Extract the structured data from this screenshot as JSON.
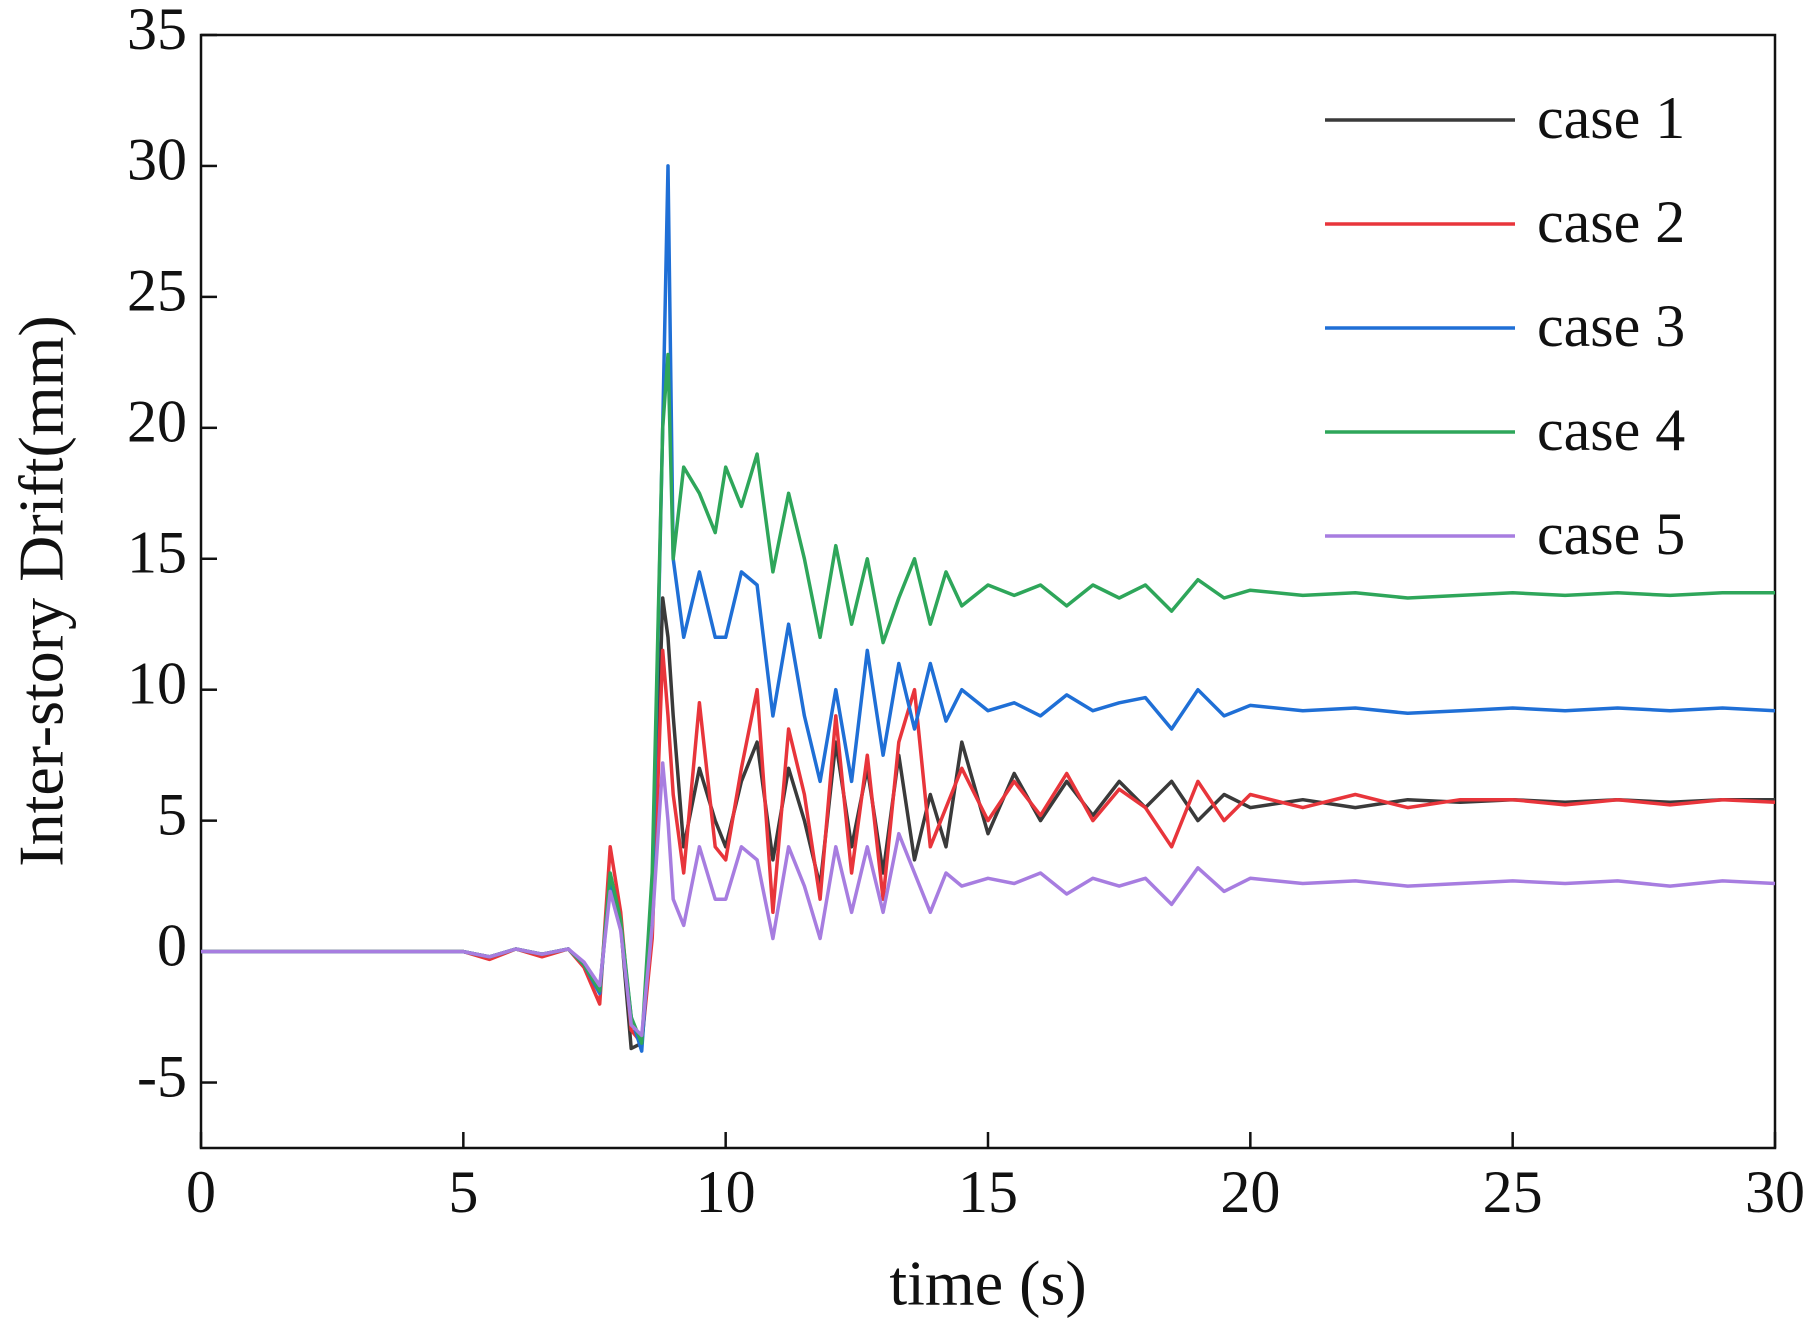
{
  "chart_data": {
    "type": "line",
    "xlabel": "time (s)",
    "ylabel": "Inter-story Drift(mm)",
    "x": [
      0,
      4.5,
      5,
      5.5,
      6,
      6.5,
      7,
      7.3,
      7.6,
      7.8,
      8.0,
      8.2,
      8.4,
      8.6,
      8.8,
      8.9,
      9.0,
      9.2,
      9.5,
      9.8,
      10.0,
      10.3,
      10.6,
      10.9,
      11.2,
      11.5,
      11.8,
      12.1,
      12.4,
      12.7,
      13.0,
      13.3,
      13.6,
      13.9,
      14.2,
      14.5,
      15,
      15.5,
      16,
      16.5,
      17,
      17.5,
      18,
      18.5,
      19,
      19.5,
      20,
      21,
      22,
      23,
      24,
      25,
      26,
      27,
      28,
      29,
      30
    ],
    "series": [
      {
        "name": "case 1",
        "color": "#3a3a3a",
        "values": [
          0,
          0,
          0,
          -0.2,
          0.1,
          -0.1,
          0.1,
          -0.5,
          -1.5,
          2.8,
          1,
          -3.7,
          -3.5,
          1,
          13.5,
          12,
          9,
          4,
          7,
          5,
          4,
          6.5,
          8,
          3.5,
          7,
          5,
          2.5,
          8,
          4,
          7,
          3,
          7.5,
          3.5,
          6,
          4,
          8,
          4.5,
          6.8,
          5,
          6.5,
          5.2,
          6.5,
          5.5,
          6.5,
          5,
          6,
          5.5,
          5.8,
          5.5,
          5.8,
          5.7,
          5.8,
          5.7,
          5.8,
          5.7,
          5.8,
          5.8
        ]
      },
      {
        "name": "case 2",
        "color": "#e8353b",
        "values": [
          0,
          0,
          0,
          -0.3,
          0.1,
          -0.2,
          0.1,
          -0.6,
          -2,
          4,
          1.5,
          -3,
          -3.5,
          0.5,
          11.5,
          9,
          6,
          3,
          9.5,
          4,
          3.5,
          7,
          10,
          1.5,
          8.5,
          6,
          2,
          9,
          3,
          7.5,
          2,
          8,
          10,
          4,
          5.5,
          7,
          5,
          6.5,
          5.2,
          6.8,
          5,
          6.2,
          5.5,
          4,
          6.5,
          5,
          6,
          5.5,
          6,
          5.5,
          5.8,
          5.8,
          5.6,
          5.8,
          5.6,
          5.8,
          5.7
        ]
      },
      {
        "name": "case 3",
        "color": "#1f6fd6",
        "values": [
          0,
          0,
          0,
          -0.2,
          0.1,
          -0.1,
          0.1,
          -0.5,
          -1.6,
          2.8,
          1,
          -2.5,
          -3.8,
          2,
          20,
          30,
          15,
          12,
          14.5,
          12,
          12,
          14.5,
          14,
          9,
          12.5,
          9,
          6.5,
          10,
          6.5,
          11.5,
          7.5,
          11,
          8.5,
          11,
          8.8,
          10,
          9.2,
          9.5,
          9,
          9.8,
          9.2,
          9.5,
          9.7,
          8.5,
          10,
          9,
          9.4,
          9.2,
          9.3,
          9.1,
          9.2,
          9.3,
          9.2,
          9.3,
          9.2,
          9.3,
          9.2
        ]
      },
      {
        "name": "case 4",
        "color": "#2ea65a",
        "values": [
          0,
          0,
          0,
          -0.2,
          0.1,
          -0.1,
          0.1,
          -0.5,
          -1.5,
          3,
          1.2,
          -2.5,
          -3.5,
          3,
          20,
          22.8,
          15,
          18.5,
          17.5,
          16,
          18.5,
          17,
          19,
          14.5,
          17.5,
          15,
          12,
          15.5,
          12.5,
          15,
          11.8,
          13.5,
          15,
          12.5,
          14.5,
          13.2,
          14,
          13.6,
          14,
          13.2,
          14,
          13.5,
          14,
          13,
          14.2,
          13.5,
          13.8,
          13.6,
          13.7,
          13.5,
          13.6,
          13.7,
          13.6,
          13.7,
          13.6,
          13.7,
          13.7
        ]
      },
      {
        "name": "case 5",
        "color": "#a77de0",
        "values": [
          0,
          0,
          0,
          -0.2,
          0.1,
          -0.1,
          0.1,
          -0.4,
          -1.3,
          2.3,
          0.8,
          -2.8,
          -3.2,
          1,
          7.2,
          5,
          2,
          1,
          4,
          2,
          2,
          4,
          3.5,
          0.5,
          4,
          2.5,
          0.5,
          4,
          1.5,
          4,
          1.5,
          4.5,
          3,
          1.5,
          3,
          2.5,
          2.8,
          2.6,
          3,
          2.2,
          2.8,
          2.5,
          2.8,
          1.8,
          3.2,
          2.3,
          2.8,
          2.6,
          2.7,
          2.5,
          2.6,
          2.7,
          2.6,
          2.7,
          2.5,
          2.7,
          2.6
        ]
      }
    ],
    "xlim": [
      0,
      30
    ],
    "xticks": [
      0,
      5,
      10,
      15,
      20,
      25,
      30
    ],
    "ylim": [
      -7.5,
      35
    ],
    "yticks": [
      -5,
      0,
      5,
      10,
      15,
      20,
      25,
      30,
      35
    ],
    "grid": false,
    "legend": "upper right"
  }
}
